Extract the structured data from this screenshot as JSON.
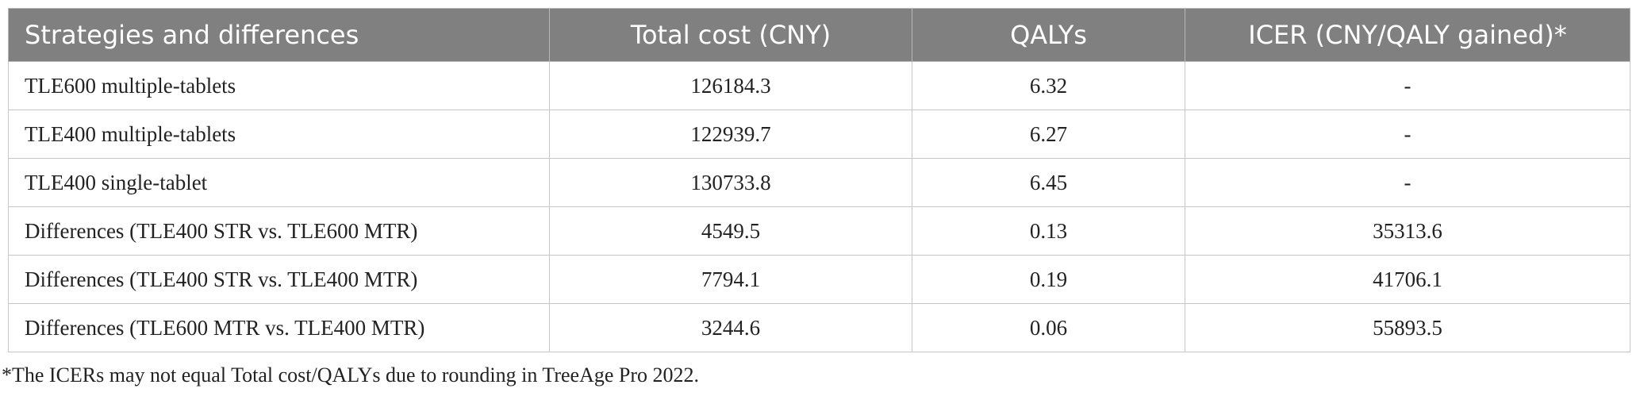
{
  "table": {
    "header": [
      "Strategies and differences",
      "Total cost (CNY)",
      "QALYs",
      "ICER (CNY/QALY gained)*"
    ],
    "rows": [
      [
        "TLE600 multiple-tablets",
        "126184.3",
        "6.32",
        "-"
      ],
      [
        "TLE400 multiple-tablets",
        "122939.7",
        "6.27",
        "-"
      ],
      [
        "TLE400 single-tablet",
        "130733.8",
        "6.45",
        "-"
      ],
      [
        "Differences (TLE400 STR vs. TLE600 MTR)",
        "4549.5",
        "0.13",
        "35313.6"
      ],
      [
        "Differences (TLE400 STR vs. TLE400 MTR)",
        "7794.1",
        "0.19",
        "41706.1"
      ],
      [
        "Differences (TLE600 MTR vs. TLE400 MTR)",
        "3244.6",
        "0.06",
        "55893.5"
      ]
    ]
  },
  "footnote": "*The ICERs may not equal Total cost/QALYs due to rounding in TreeAge Pro 2022."
}
